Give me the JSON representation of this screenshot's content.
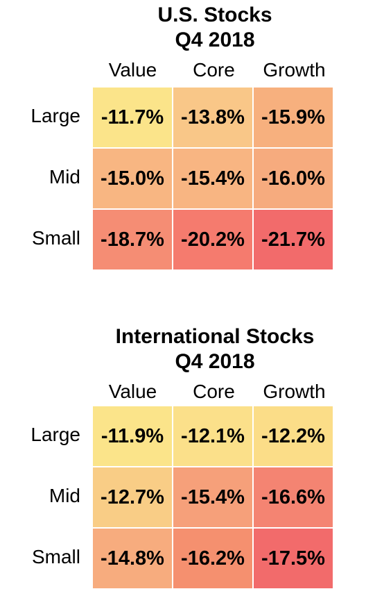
{
  "chart_data": [
    {
      "type": "heatmap",
      "title": "U.S. Stocks",
      "subtitle": "Q4 2018",
      "columns": [
        "Value",
        "Core",
        "Growth"
      ],
      "rows": [
        "Large",
        "Mid",
        "Small"
      ],
      "values": [
        [
          "-11.7%",
          "-13.8%",
          "-15.9%"
        ],
        [
          "-15.0%",
          "-15.4%",
          "-16.0%"
        ],
        [
          "-18.7%",
          "-20.2%",
          "-21.7%"
        ]
      ],
      "colors": [
        [
          "#fbe48a",
          "#f9c788",
          "#f7b07e"
        ],
        [
          "#f8b682",
          "#f8b582",
          "#f6ab7e"
        ],
        [
          "#f58d74",
          "#f57b6e",
          "#f26b6b"
        ]
      ]
    },
    {
      "type": "heatmap",
      "title": "International Stocks",
      "subtitle": "Q4 2018",
      "columns": [
        "Value",
        "Core",
        "Growth"
      ],
      "rows": [
        "Large",
        "Mid",
        "Small"
      ],
      "values": [
        [
          "-11.9%",
          "-12.1%",
          "-12.2%"
        ],
        [
          "-12.7%",
          "-15.4%",
          "-16.6%"
        ],
        [
          "-14.8%",
          "-16.2%",
          "-17.5%"
        ]
      ],
      "colors": [
        [
          "#fbe48a",
          "#fbe08a",
          "#fbdd88"
        ],
        [
          "#f9cd86",
          "#f6a07a",
          "#f48472"
        ],
        [
          "#f7ac7e",
          "#f5906f",
          "#f26b6b"
        ]
      ]
    }
  ]
}
